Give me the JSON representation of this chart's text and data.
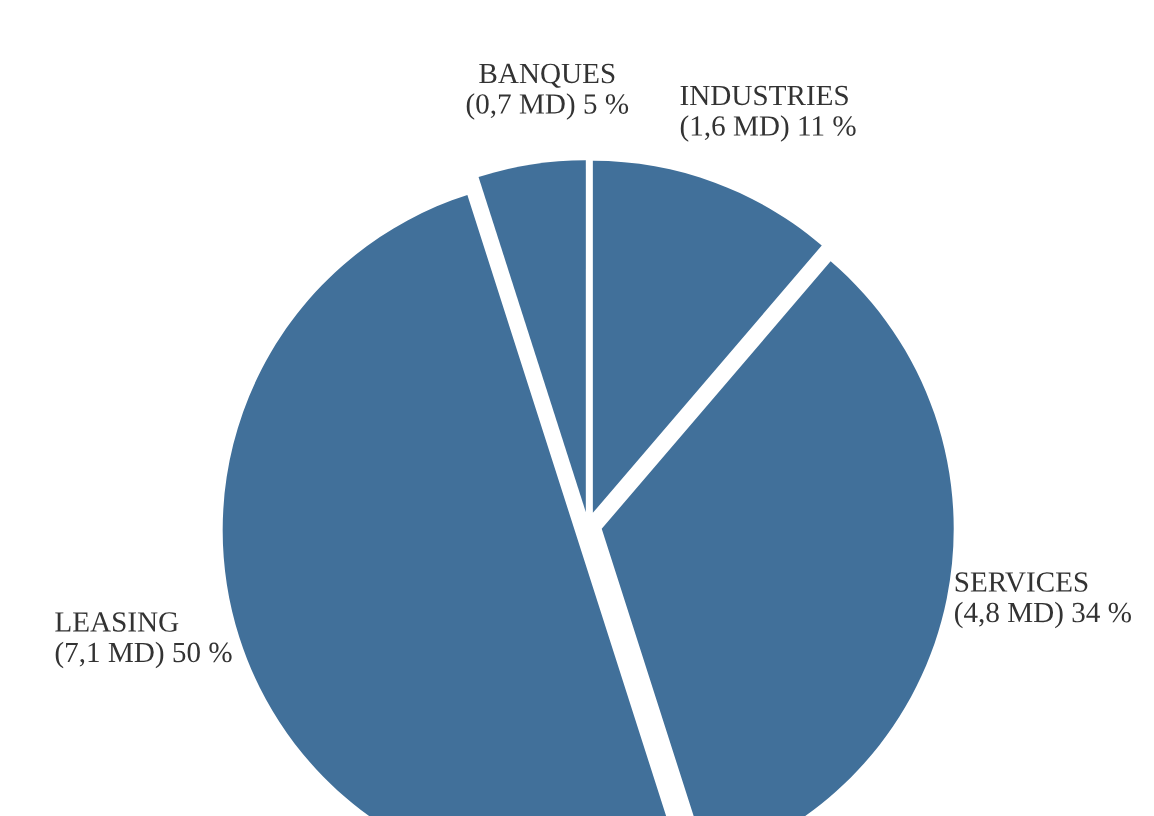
{
  "chart_data": {
    "type": "pie",
    "categories": [
      "INDUSTRIES",
      "SERVICES",
      "LEASING",
      "BANQUES"
    ],
    "values": [
      1.6,
      4.8,
      7.1,
      0.7
    ],
    "value_labels": [
      "(1,6 MD) 11 %",
      "(4,8 MD) 34 %",
      "(7,1 MD) 50 %",
      "(0,7 MD) 5 %"
    ],
    "colors": [
      "#41709a",
      "#41709a",
      "#41709a",
      "#41709a"
    ]
  }
}
